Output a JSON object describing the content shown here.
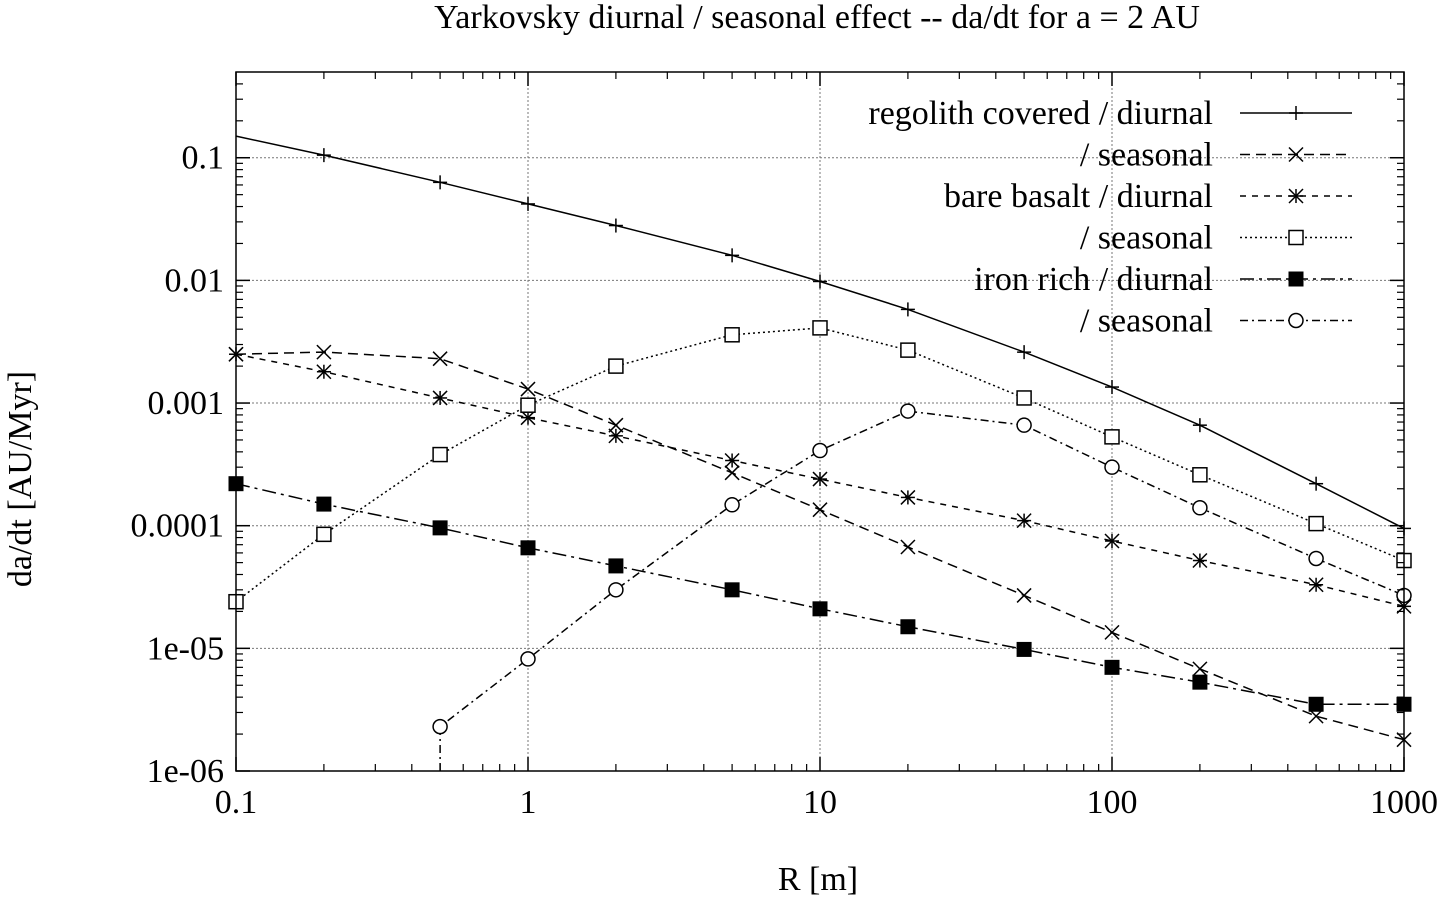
{
  "chart_data": {
    "type": "line",
    "title": "Yarkovsky diurnal / seasonal effect -- da/dt for a = 2 AU",
    "xlabel": "R [m]",
    "ylabel": "da/dt [AU/Myr]",
    "xscale": "log",
    "yscale": "log",
    "xlim": [
      0.1,
      1000
    ],
    "ylim": [
      1e-06,
      0.5
    ],
    "grid": true,
    "legend_position": "top-right",
    "x_ticks": [
      "0.1",
      "1",
      "10",
      "100",
      "1000"
    ],
    "y_ticks": [
      "1e-06",
      "1e-05",
      "0.0001",
      "0.001",
      "0.01",
      "0.1"
    ],
    "series": [
      {
        "name": "regolith covered / diurnal",
        "marker": "plus",
        "dash": "",
        "x": [
          0.1,
          0.2,
          0.5,
          1,
          2,
          5,
          10,
          20,
          50,
          100,
          200,
          500,
          1000
        ],
        "y": [
          0.15,
          0.105,
          0.063,
          0.042,
          0.028,
          0.016,
          0.0098,
          0.0058,
          0.0026,
          0.00135,
          0.00066,
          0.00022,
          9.5e-05
        ],
        "markers_at_start": false
      },
      {
        "name": "/ seasonal",
        "marker": "cross",
        "dash": "10,6",
        "x": [
          0.1,
          0.2,
          0.5,
          1,
          2,
          5,
          10,
          20,
          50,
          100,
          200,
          500,
          1000
        ],
        "y": [
          0.0025,
          0.0026,
          0.0023,
          0.0013,
          0.00066,
          0.00027,
          0.000135,
          6.7e-05,
          2.7e-05,
          1.35e-05,
          6.8e-06,
          2.8e-06,
          1.8e-06
        ]
      },
      {
        "name": "bare basalt / diurnal",
        "marker": "star",
        "dash": "6,6",
        "x": [
          0.1,
          0.2,
          0.5,
          1,
          2,
          5,
          10,
          20,
          50,
          100,
          200,
          500,
          1000
        ],
        "y": [
          0.0025,
          0.0018,
          0.0011,
          0.00076,
          0.00054,
          0.00034,
          0.00024,
          0.00017,
          0.00011,
          7.5e-05,
          5.2e-05,
          3.3e-05,
          2.2e-05
        ]
      },
      {
        "name": "/ seasonal",
        "marker": "square-open",
        "dash": "2,3",
        "x": [
          0.1,
          0.2,
          0.5,
          1,
          2,
          5,
          10,
          20,
          50,
          100,
          200,
          500,
          1000
        ],
        "y": [
          2.4e-05,
          8.5e-05,
          0.00038,
          0.00096,
          0.002,
          0.0036,
          0.0041,
          0.0027,
          0.0011,
          0.00053,
          0.00026,
          0.000104,
          5.2e-05
        ]
      },
      {
        "name": "iron rich / diurnal",
        "marker": "square-filled",
        "dash": "14,5,3,5",
        "x": [
          0.1,
          0.2,
          0.5,
          1,
          2,
          5,
          10,
          20,
          50,
          100,
          200,
          500,
          1000
        ],
        "y": [
          0.00022,
          0.00015,
          9.6e-05,
          6.6e-05,
          4.7e-05,
          3e-05,
          2.1e-05,
          1.5e-05,
          9.8e-06,
          7e-06,
          5.3e-06,
          3.5e-06,
          3.5e-06
        ]
      },
      {
        "name": "/ seasonal",
        "marker": "circle-open",
        "dash": "8,4,2,4",
        "x": [
          0.5,
          1,
          2,
          5,
          10,
          20,
          50,
          100,
          200,
          500,
          1000
        ],
        "y": [
          2.3e-06,
          8.2e-06,
          3e-05,
          0.000148,
          0.00041,
          0.00086,
          0.00066,
          0.0003,
          0.00014,
          5.4e-05,
          2.7e-05
        ],
        "descends_below_axis_at_start": true
      }
    ]
  }
}
